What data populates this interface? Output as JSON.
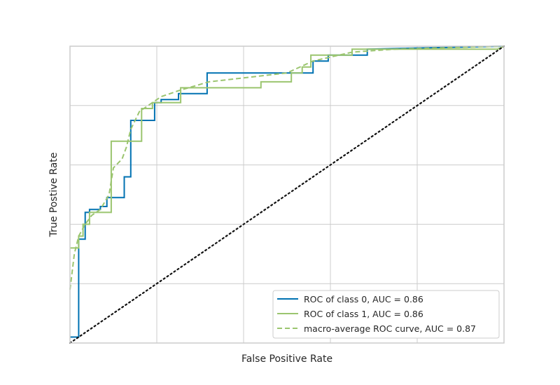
{
  "chart_data": {
    "type": "line",
    "xlabel": "False Positive Rate",
    "ylabel": "True Postive Rate",
    "xlim": [
      0,
      1
    ],
    "ylim": [
      0,
      1
    ],
    "grid": true,
    "legend_position": "lower-right",
    "series": [
      {
        "name": "ROC of class 0, AUC = 0.86",
        "color": "#0072b2",
        "style": "solid",
        "x": [
          0,
          0.02,
          0.02,
          0.035,
          0.035,
          0.045,
          0.045,
          0.07,
          0.07,
          0.085,
          0.085,
          0.125,
          0.125,
          0.14,
          0.14,
          0.195,
          0.195,
          0.21,
          0.21,
          0.25,
          0.25,
          0.316,
          0.316,
          0.56,
          0.56,
          0.595,
          0.595,
          0.685,
          0.685,
          1.0
        ],
        "y": [
          0.02,
          0.02,
          0.35,
          0.35,
          0.44,
          0.44,
          0.45,
          0.45,
          0.46,
          0.46,
          0.49,
          0.49,
          0.56,
          0.56,
          0.75,
          0.75,
          0.81,
          0.81,
          0.82,
          0.82,
          0.84,
          0.84,
          0.91,
          0.91,
          0.95,
          0.95,
          0.97,
          0.97,
          0.99,
          1.0
        ]
      },
      {
        "name": "ROC of class 1, AUC = 0.86",
        "color": "#9bc56f",
        "style": "solid",
        "x": [
          0,
          0.02,
          0.02,
          0.03,
          0.03,
          0.045,
          0.045,
          0.095,
          0.095,
          0.165,
          0.165,
          0.19,
          0.19,
          0.255,
          0.255,
          0.44,
          0.44,
          0.51,
          0.51,
          0.535,
          0.535,
          0.555,
          0.555,
          0.65,
          0.65,
          0.985,
          1.0
        ],
        "y": [
          0.32,
          0.32,
          0.36,
          0.36,
          0.4,
          0.4,
          0.44,
          0.44,
          0.68,
          0.68,
          0.79,
          0.79,
          0.81,
          0.81,
          0.86,
          0.86,
          0.88,
          0.88,
          0.91,
          0.91,
          0.93,
          0.93,
          0.97,
          0.97,
          0.99,
          0.99,
          1.0
        ]
      },
      {
        "name": "macro-average ROC curve, AUC = 0.87",
        "color": "#9bc56f",
        "style": "dashed",
        "x": [
          0,
          0.01,
          0.02,
          0.035,
          0.05,
          0.07,
          0.09,
          0.1,
          0.12,
          0.13,
          0.14,
          0.16,
          0.18,
          0.21,
          0.25,
          0.32,
          0.5,
          0.56,
          0.65,
          0.75,
          1.0
        ],
        "y": [
          0.18,
          0.3,
          0.36,
          0.4,
          0.43,
          0.45,
          0.5,
          0.59,
          0.62,
          0.66,
          0.72,
          0.78,
          0.8,
          0.83,
          0.85,
          0.88,
          0.91,
          0.95,
          0.98,
          0.99,
          1.0
        ]
      },
      {
        "name": "",
        "color": "#111111",
        "style": "dotted",
        "x": [
          0,
          1
        ],
        "y": [
          0,
          1
        ]
      }
    ]
  }
}
